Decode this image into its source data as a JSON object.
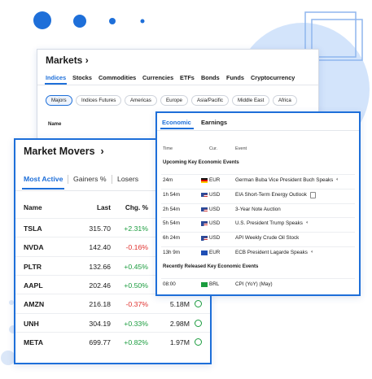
{
  "markets": {
    "title": "Markets",
    "tabs": [
      "Indices",
      "Stocks",
      "Commodities",
      "Currencies",
      "ETFs",
      "Bonds",
      "Funds",
      "Cryptocurrency"
    ],
    "filters": [
      "Majors",
      "Indices Futures",
      "Americas",
      "Europe",
      "Asia/Pacific",
      "Middle East",
      "Africa"
    ],
    "column": "Name"
  },
  "economic": {
    "tabs": [
      "Economic",
      "Earnings"
    ],
    "columns": [
      "Time",
      "Cur.",
      "Event"
    ],
    "upcoming_heading": "Upcoming Key Economic Events",
    "upcoming": [
      [
        "24m",
        "EUR",
        "German Buba Vice President Buch Speaks"
      ],
      [
        "1h 54m",
        "USD",
        "EIA Short-Term Energy Outlook"
      ],
      [
        "2h 54m",
        "USD",
        "3-Year Note Auction"
      ],
      [
        "5h 54m",
        "USD",
        "U.S. President Trump Speaks"
      ],
      [
        "6h 24m",
        "USD",
        "API Weekly Crude Oil Stock"
      ],
      [
        "13h 9m",
        "EUR",
        "ECB President Lagarde Speaks"
      ]
    ],
    "released_heading": "Recently Released Key Economic Events",
    "released": [
      [
        "08:00",
        "BRL",
        "CPI (YoY) (May)"
      ]
    ]
  },
  "movers": {
    "title": "Market Movers",
    "tabs": [
      "Most Active",
      "Gainers %",
      "Losers"
    ],
    "columns": [
      "Name",
      "Last",
      "Chg. %"
    ],
    "rows": [
      [
        "TSLA",
        "315.70",
        "+2.31%",
        null
      ],
      [
        "NVDA",
        "142.40",
        "-0.16%",
        null
      ],
      [
        "PLTR",
        "132.66",
        "+0.45%",
        null
      ],
      [
        "AAPL",
        "202.46",
        "+0.50%",
        null
      ],
      [
        "AMZN",
        "216.18",
        "-0.37%",
        "5.18M"
      ],
      [
        "UNH",
        "304.19",
        "+0.33%",
        "2.98M"
      ],
      [
        "META",
        "699.77",
        "+0.82%",
        "1.97M"
      ]
    ]
  }
}
